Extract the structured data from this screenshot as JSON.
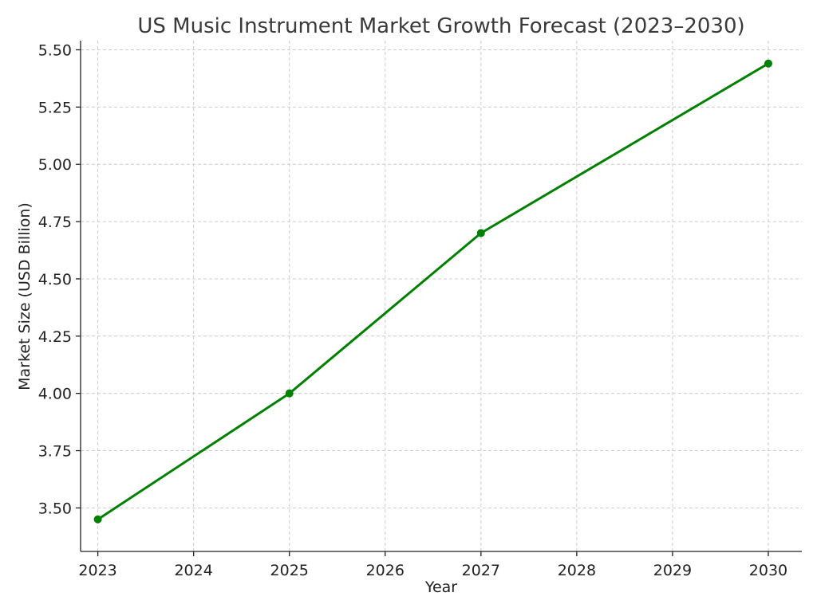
{
  "chart_data": {
    "type": "line",
    "title": "US Music Instrument Market Growth Forecast (2023–2030)",
    "xlabel": "Year",
    "ylabel": "Market Size (USD Billion)",
    "x_ticks": [
      "2023",
      "2024",
      "2025",
      "2026",
      "2027",
      "2028",
      "2029",
      "2030"
    ],
    "y_ticks": [
      "3.50",
      "3.75",
      "4.00",
      "4.25",
      "4.50",
      "4.75",
      "5.00",
      "5.25",
      "5.50"
    ],
    "xlim": [
      2022.82,
      2030.35
    ],
    "ylim": [
      3.31,
      5.54
    ],
    "grid": true,
    "series": [
      {
        "x": [
          2023,
          2025,
          2027,
          2030
        ],
        "values": [
          3.45,
          4.0,
          4.7,
          5.44
        ],
        "color": "#008000",
        "marker": "circle"
      }
    ]
  }
}
